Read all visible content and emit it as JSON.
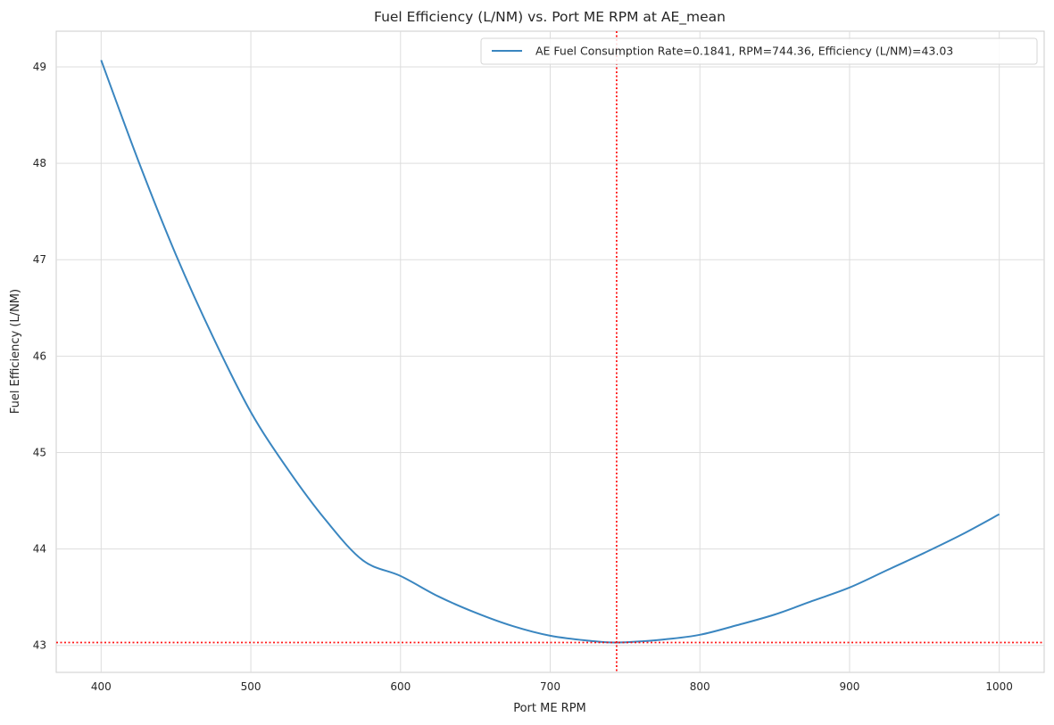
{
  "chart_data": {
    "type": "line",
    "title": "Fuel Efficiency (L/NM) vs. Port ME RPM at AE_mean",
    "xlabel": "Port ME RPM",
    "ylabel": "Fuel Efficiency (L/NM)",
    "xlim": [
      370,
      1030
    ],
    "ylim": [
      42.72,
      49.37
    ],
    "xticks": [
      400,
      500,
      600,
      700,
      800,
      900,
      1000
    ],
    "yticks": [
      43,
      44,
      45,
      46,
      47,
      48,
      49
    ],
    "grid": true,
    "legend_position": "top-right",
    "series": [
      {
        "name": "AE Fuel Consumption Rate=0.1841, RPM=744.36, Efficiency (L/NM)=43.03",
        "color": "#3a86c0",
        "x": [
          400,
          425,
          450,
          475,
          500,
          525,
          550,
          575,
          600,
          625,
          650,
          675,
          700,
          725,
          744.36,
          775,
          800,
          825,
          850,
          875,
          900,
          925,
          950,
          975,
          1000
        ],
        "y": [
          49.07,
          48.02,
          47.05,
          46.19,
          45.42,
          44.82,
          44.3,
          43.88,
          43.72,
          43.51,
          43.34,
          43.2,
          43.1,
          43.05,
          43.03,
          43.06,
          43.11,
          43.21,
          43.32,
          43.46,
          43.6,
          43.78,
          43.96,
          44.15,
          44.36
        ]
      }
    ],
    "reference_lines": [
      {
        "orientation": "vertical",
        "value": 744.36,
        "color": "#ff0000",
        "style": "dotted"
      },
      {
        "orientation": "horizontal",
        "value": 43.03,
        "color": "#ff0000",
        "style": "dotted"
      }
    ]
  }
}
